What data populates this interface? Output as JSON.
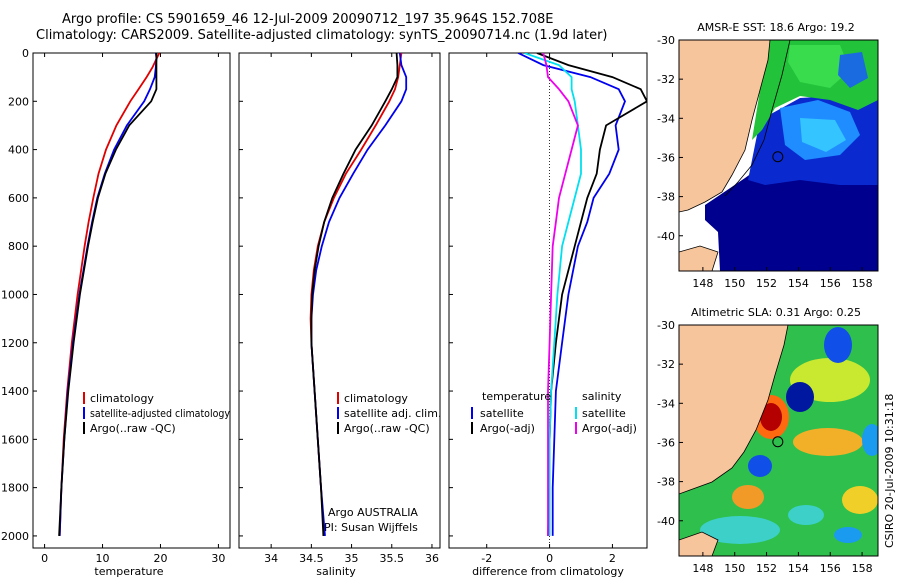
{
  "header": {
    "line1": "Argo profile: CS 5901659_46 12-Jul-2009 20090712_197 35.964S 152.708E",
    "line2": "Climatology: CARS2009. Satellite-adjusted climatology: synTS_20090714.nc (1.9d later)"
  },
  "colors": {
    "red": "#e00000",
    "blue": "#0000ee",
    "black": "#000000",
    "cyan": "#00e0f0",
    "magenta": "#ee00ee",
    "land": "#f7c59b"
  },
  "chart_data": [
    {
      "type": "line",
      "id": "temperature",
      "xlabel": "temperature",
      "xlim": [
        -2,
        32
      ],
      "ylim": [
        0,
        2050
      ],
      "xticks": [
        0,
        10,
        20,
        30
      ],
      "yticks": [
        0,
        200,
        400,
        600,
        800,
        1000,
        1200,
        1400,
        1600,
        1800,
        2000
      ],
      "y": [
        0,
        20,
        60,
        100,
        150,
        200,
        300,
        400,
        500,
        600,
        700,
        800,
        1000,
        1200,
        1400,
        1600,
        1800,
        2000
      ],
      "series": [
        {
          "name": "climatology",
          "color": "red",
          "values": [
            19.8,
            19.4,
            18.6,
            17.6,
            16.2,
            14.8,
            12.4,
            10.6,
            9.3,
            8.4,
            7.6,
            6.9,
            5.7,
            4.7,
            3.9,
            3.3,
            2.9,
            2.6
          ]
        },
        {
          "name": "satellite-adjusted climatology",
          "color": "blue",
          "values": [
            19.2,
            19.3,
            19.2,
            19.0,
            18.2,
            17.2,
            14.2,
            12.0,
            10.4,
            9.1,
            8.2,
            7.4,
            6.0,
            4.9,
            4.0,
            3.4,
            2.9,
            2.6
          ]
        },
        {
          "name": "Argo(..raw -QC)",
          "color": "black",
          "values": [
            19.3,
            19.3,
            19.3,
            19.3,
            19.3,
            18.4,
            14.6,
            12.3,
            10.5,
            9.2,
            8.3,
            7.5,
            6.1,
            5.0,
            4.1,
            3.4,
            2.9,
            2.5
          ]
        }
      ]
    },
    {
      "type": "line",
      "id": "salinity",
      "xlabel": "salinity",
      "xlim": [
        33.6,
        36.1
      ],
      "ylim": [
        0,
        2050
      ],
      "xticks": [
        34,
        34.5,
        35,
        35.5,
        36
      ],
      "yticks": [
        0,
        200,
        400,
        600,
        800,
        1000,
        1200,
        1400,
        1600,
        1800,
        2000
      ],
      "y": [
        0,
        50,
        100,
        150,
        200,
        300,
        400,
        500,
        600,
        700,
        800,
        900,
        1000,
        1100,
        1200,
        1400,
        1600,
        1800,
        2000
      ],
      "series": [
        {
          "name": "climatology",
          "color": "red",
          "values": [
            35.62,
            35.6,
            35.58,
            35.54,
            35.47,
            35.3,
            35.12,
            34.93,
            34.78,
            34.66,
            34.58,
            34.53,
            34.5,
            34.49,
            34.5,
            34.54,
            34.58,
            34.62,
            34.66
          ]
        },
        {
          "name": "satellite adj. clim.",
          "color": "blue",
          "values": [
            35.6,
            35.62,
            35.68,
            35.68,
            35.62,
            35.42,
            35.2,
            35.02,
            34.85,
            34.72,
            34.63,
            34.56,
            34.52,
            34.5,
            34.5,
            34.54,
            34.58,
            34.62,
            34.67
          ]
        },
        {
          "name": "Argo(..raw -QC)",
          "color": "black",
          "values": [
            35.56,
            35.57,
            35.57,
            35.5,
            35.42,
            35.25,
            35.05,
            34.9,
            34.76,
            34.66,
            34.59,
            34.54,
            34.51,
            34.5,
            34.5,
            34.54,
            34.58,
            34.62,
            34.65
          ]
        }
      ],
      "annotations": [
        "Argo AUSTRALIA",
        "PI: Susan Wijffels"
      ]
    },
    {
      "type": "line",
      "id": "difference",
      "xlabel": "difference from climatology",
      "xlim": [
        -3.2,
        3.1
      ],
      "ylim": [
        0,
        2050
      ],
      "xticks": [
        -2,
        0,
        2
      ],
      "yticks": [
        0,
        200,
        400,
        600,
        800,
        1000,
        1200,
        1400,
        1600,
        1800,
        2000
      ],
      "y": [
        0,
        50,
        100,
        150,
        200,
        300,
        400,
        500,
        600,
        700,
        800,
        1000,
        1200,
        1400,
        1600,
        1800,
        2000
      ],
      "series": [
        {
          "name": "temperature satellite",
          "color": "blue",
          "values": [
            -1.0,
            -0.2,
            1.3,
            2.2,
            2.4,
            2.1,
            2.2,
            1.9,
            1.4,
            1.2,
            0.9,
            0.6,
            0.4,
            0.2,
            0.15,
            0.1,
            0.1
          ]
        },
        {
          "name": "temperature Argo(-adj)",
          "color": "black",
          "values": [
            -0.4,
            0.6,
            2.0,
            2.9,
            3.1,
            1.8,
            1.6,
            1.5,
            1.2,
            1.0,
            0.8,
            0.4,
            0.2,
            0.05,
            0.0,
            0.0,
            -0.05
          ]
        },
        {
          "name": "salinity satellite",
          "color": "cyan",
          "values": [
            -0.8,
            0.3,
            0.7,
            0.7,
            0.8,
            0.9,
            1.0,
            1.0,
            0.8,
            0.6,
            0.4,
            0.25,
            0.15,
            0.05,
            0.0,
            0.0,
            0.0
          ]
        },
        {
          "name": "salinity Argo(-adj)",
          "color": "magenta",
          "values": [
            -0.2,
            -0.1,
            -0.05,
            0.3,
            0.6,
            0.9,
            0.7,
            0.5,
            0.3,
            0.2,
            0.1,
            0.05,
            0.0,
            -0.05,
            -0.05,
            -0.05,
            -0.05
          ]
        }
      ],
      "legend_headers": [
        "temperature",
        "salinity"
      ],
      "legend_labels": [
        "satellite",
        "Argo(-adj)",
        "satellite",
        "Argo(-adj)"
      ]
    },
    {
      "type": "heatmap",
      "id": "sst-map",
      "title": "AMSR-E SST: 18.6 Argo: 19.2",
      "xlim": [
        146.5,
        159.0
      ],
      "ylim": [
        -41.8,
        -30.0
      ],
      "xticks": [
        148,
        150,
        152,
        154,
        156,
        158
      ],
      "yticks": [
        -30,
        -32,
        -34,
        -36,
        -38,
        -40
      ],
      "float_position": [
        152.708,
        -35.964
      ]
    },
    {
      "type": "heatmap",
      "id": "sla-map",
      "title": "Altimetric SLA: 0.31 Argo: 0.25",
      "xlim": [
        146.5,
        159.0
      ],
      "ylim": [
        -41.8,
        -30.0
      ],
      "xticks": [
        148,
        150,
        152,
        154,
        156,
        158
      ],
      "yticks": [
        -30,
        -32,
        -34,
        -36,
        -38,
        -40
      ],
      "float_position": [
        152.708,
        -35.964
      ]
    }
  ],
  "footer": {
    "stamp": "CSIRO 20-Jul-2009 10:31:18"
  }
}
